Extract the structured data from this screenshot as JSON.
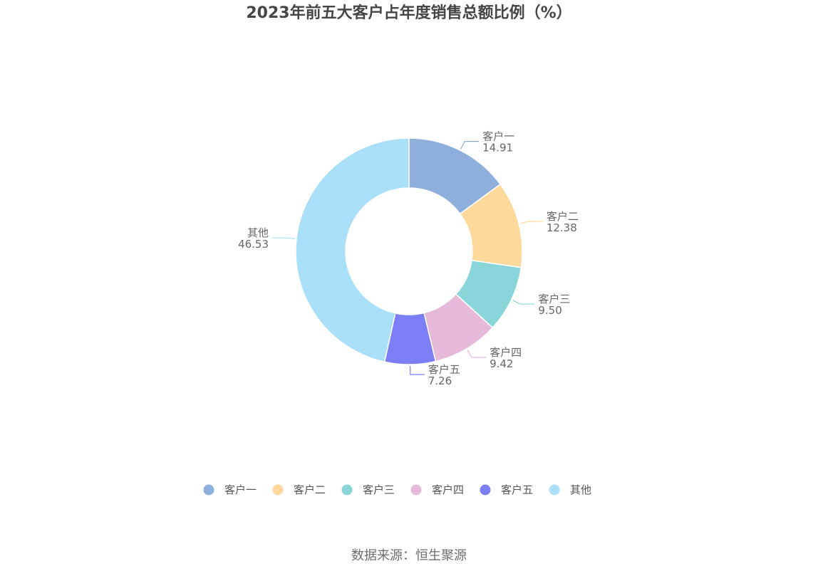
{
  "chart_data": {
    "type": "pie",
    "title": "2023年前五大客户占年度销售总额比例（%）",
    "donut": true,
    "legend_position": "bottom",
    "slices": [
      {
        "label": "客户一",
        "value": 14.91,
        "value_text": "14.91",
        "color": "#8eaedc"
      },
      {
        "label": "客户二",
        "value": 12.38,
        "value_text": "12.38",
        "color": "#ffd99b"
      },
      {
        "label": "客户三",
        "value": 9.5,
        "value_text": "9.50",
        "color": "#89d5da"
      },
      {
        "label": "客户四",
        "value": 9.42,
        "value_text": "9.42",
        "color": "#e6b9db"
      },
      {
        "label": "客户五",
        "value": 7.26,
        "value_text": "7.26",
        "color": "#7b7ef5"
      },
      {
        "label": "其他",
        "value": 46.53,
        "value_text": "46.53",
        "color": "#aadff9"
      }
    ]
  },
  "source_text": "数据来源：恒生聚源"
}
